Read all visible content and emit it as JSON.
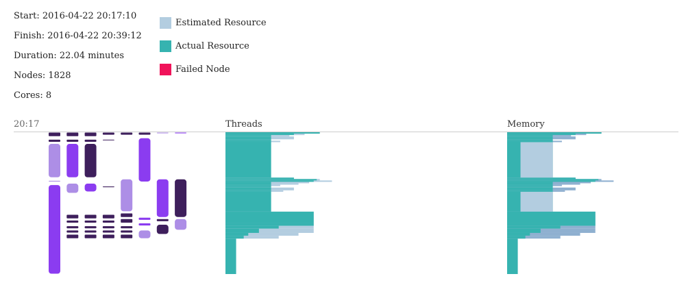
{
  "stats": {
    "start": "Start: 2016-04-22 20:17:10",
    "finish": "Finish: 2016-04-22 20:39:12",
    "duration": "Duration: 22.04 minutes",
    "nodes": "Nodes: 1828",
    "cores": "Cores: 8"
  },
  "legend": [
    {
      "label": "Estimated Resource",
      "color": "#b3cde0"
    },
    {
      "label": "Actual Resource",
      "color": "#36b3b0"
    },
    {
      "label": "Failed Node",
      "color": "#f0135a"
    }
  ],
  "colors": {
    "light_purple": "#ad8ee6",
    "purple": "#8b3cf0",
    "dark_purple": "#3e1f5c",
    "estimated": "#b3cde0",
    "estimated_dark": "#8fb0d0",
    "actual": "#36b3b0",
    "actual_dark": "#1a9990",
    "axis": "#cccccc"
  },
  "time_axis": {
    "start_label": "20:17"
  },
  "chart_data": {
    "type": "gantt",
    "title": "",
    "panels": [
      {
        "title": "Threads"
      },
      {
        "title": "Memory"
      }
    ],
    "timeline": {
      "lanes": 8,
      "tasks": [
        {
          "lane": 0,
          "start": 0.0,
          "end": 0.03,
          "shade": "dark_purple"
        },
        {
          "lane": 0,
          "start": 0.05,
          "end": 0.07,
          "shade": "dark_purple"
        },
        {
          "lane": 0,
          "start": 0.08,
          "end": 0.32,
          "shade": "light_purple"
        },
        {
          "lane": 0,
          "start": 0.34,
          "end": 0.35,
          "shade": "light_purple"
        },
        {
          "lane": 0,
          "start": 0.37,
          "end": 1.0,
          "shade": "purple"
        },
        {
          "lane": 1,
          "start": 0.0,
          "end": 0.03,
          "shade": "dark_purple"
        },
        {
          "lane": 1,
          "start": 0.05,
          "end": 0.07,
          "shade": "dark_purple"
        },
        {
          "lane": 1,
          "start": 0.08,
          "end": 0.32,
          "shade": "purple"
        },
        {
          "lane": 1,
          "start": 0.36,
          "end": 0.43,
          "shade": "light_purple"
        },
        {
          "lane": 1,
          "start": 0.58,
          "end": 0.61,
          "shade": "dark_purple"
        },
        {
          "lane": 1,
          "start": 0.62,
          "end": 0.64,
          "shade": "dark_purple"
        },
        {
          "lane": 1,
          "start": 0.66,
          "end": 0.68,
          "shade": "dark_purple"
        },
        {
          "lane": 1,
          "start": 0.69,
          "end": 0.71,
          "shade": "dark_purple"
        },
        {
          "lane": 1,
          "start": 0.72,
          "end": 0.75,
          "shade": "dark_purple"
        },
        {
          "lane": 2,
          "start": 0.0,
          "end": 0.03,
          "shade": "dark_purple"
        },
        {
          "lane": 2,
          "start": 0.05,
          "end": 0.07,
          "shade": "dark_purple"
        },
        {
          "lane": 2,
          "start": 0.08,
          "end": 0.32,
          "shade": "dark_purple"
        },
        {
          "lane": 2,
          "start": 0.36,
          "end": 0.42,
          "shade": "purple"
        },
        {
          "lane": 2,
          "start": 0.58,
          "end": 0.61,
          "shade": "dark_purple"
        },
        {
          "lane": 2,
          "start": 0.62,
          "end": 0.64,
          "shade": "dark_purple"
        },
        {
          "lane": 2,
          "start": 0.66,
          "end": 0.68,
          "shade": "dark_purple"
        },
        {
          "lane": 2,
          "start": 0.69,
          "end": 0.71,
          "shade": "dark_purple"
        },
        {
          "lane": 2,
          "start": 0.72,
          "end": 0.75,
          "shade": "dark_purple"
        },
        {
          "lane": 3,
          "start": 0.0,
          "end": 0.02,
          "shade": "dark_purple"
        },
        {
          "lane": 3,
          "start": 0.05,
          "end": 0.06,
          "shade": "dark_purple"
        },
        {
          "lane": 3,
          "start": 0.38,
          "end": 0.39,
          "shade": "dark_purple"
        },
        {
          "lane": 3,
          "start": 0.58,
          "end": 0.61,
          "shade": "dark_purple"
        },
        {
          "lane": 3,
          "start": 0.62,
          "end": 0.64,
          "shade": "dark_purple"
        },
        {
          "lane": 3,
          "start": 0.66,
          "end": 0.68,
          "shade": "dark_purple"
        },
        {
          "lane": 3,
          "start": 0.69,
          "end": 0.71,
          "shade": "dark_purple"
        },
        {
          "lane": 3,
          "start": 0.72,
          "end": 0.75,
          "shade": "dark_purple"
        },
        {
          "lane": 4,
          "start": 0.0,
          "end": 0.02,
          "shade": "dark_purple"
        },
        {
          "lane": 4,
          "start": 0.33,
          "end": 0.56,
          "shade": "light_purple"
        },
        {
          "lane": 4,
          "start": 0.57,
          "end": 0.6,
          "shade": "dark_purple"
        },
        {
          "lane": 4,
          "start": 0.61,
          "end": 0.64,
          "shade": "dark_purple"
        },
        {
          "lane": 4,
          "start": 0.66,
          "end": 0.68,
          "shade": "dark_purple"
        },
        {
          "lane": 4,
          "start": 0.69,
          "end": 0.71,
          "shade": "dark_purple"
        },
        {
          "lane": 4,
          "start": 0.72,
          "end": 0.75,
          "shade": "dark_purple"
        },
        {
          "lane": 5,
          "start": 0.0,
          "end": 0.02,
          "shade": "dark_purple"
        },
        {
          "lane": 5,
          "start": 0.04,
          "end": 0.35,
          "shade": "purple"
        },
        {
          "lane": 5,
          "start": 0.6,
          "end": 0.62,
          "shade": "purple"
        },
        {
          "lane": 5,
          "start": 0.64,
          "end": 0.66,
          "shade": "purple"
        },
        {
          "lane": 5,
          "start": 0.69,
          "end": 0.75,
          "shade": "light_purple"
        },
        {
          "lane": 6,
          "start": 0.0,
          "end": 0.01,
          "shade": "light_purple"
        },
        {
          "lane": 6,
          "start": 0.33,
          "end": 0.6,
          "shade": "purple"
        },
        {
          "lane": 6,
          "start": 0.61,
          "end": 0.63,
          "shade": "dark_purple"
        },
        {
          "lane": 6,
          "start": 0.65,
          "end": 0.72,
          "shade": "dark_purple"
        },
        {
          "lane": 7,
          "start": 0.0,
          "end": 0.01,
          "shade": "purple"
        },
        {
          "lane": 7,
          "start": 0.33,
          "end": 0.6,
          "shade": "dark_purple"
        },
        {
          "lane": 7,
          "start": 0.61,
          "end": 0.69,
          "shade": "light_purple"
        }
      ]
    },
    "usage": [
      {
        "t0": 0.0,
        "t1": 0.01,
        "est": 0.62,
        "act": 0.62
      },
      {
        "t0": 0.01,
        "t1": 0.02,
        "est": 0.52,
        "act": 0.45
      },
      {
        "t0": 0.02,
        "t1": 0.03,
        "est": 0.42,
        "act": 0.3
      },
      {
        "t0": 0.03,
        "t1": 0.05,
        "est": 0.45,
        "act": 0.3
      },
      {
        "t0": 0.05,
        "t1": 0.06,
        "est": 0.3,
        "act": 0.3
      },
      {
        "t0": 0.06,
        "t1": 0.07,
        "est": 0.36,
        "act": 0.3
      },
      {
        "t0": 0.07,
        "t1": 0.32,
        "est": 0.3,
        "act": 0.3
      },
      {
        "t0": 0.32,
        "t1": 0.33,
        "est": 0.45,
        "act": 0.45
      },
      {
        "t0": 0.33,
        "t1": 0.34,
        "est": 0.62,
        "act": 0.6
      },
      {
        "t0": 0.34,
        "t1": 0.35,
        "est": 0.7,
        "act": 0.58
      },
      {
        "t0": 0.35,
        "t1": 0.36,
        "est": 0.55,
        "act": 0.3
      },
      {
        "t0": 0.36,
        "t1": 0.37,
        "est": 0.48,
        "act": 0.3
      },
      {
        "t0": 0.37,
        "t1": 0.38,
        "est": 0.36,
        "act": 0.3
      },
      {
        "t0": 0.38,
        "t1": 0.39,
        "est": 0.3,
        "act": 0.3
      },
      {
        "t0": 0.39,
        "t1": 0.41,
        "est": 0.45,
        "act": 0.3
      },
      {
        "t0": 0.41,
        "t1": 0.42,
        "est": 0.38,
        "act": 0.3
      },
      {
        "t0": 0.42,
        "t1": 0.56,
        "est": 0.3,
        "act": 0.3
      },
      {
        "t0": 0.56,
        "t1": 0.57,
        "est": 0.58,
        "act": 0.58
      },
      {
        "t0": 0.57,
        "t1": 0.64,
        "est": 0.58,
        "act": 0.58
      },
      {
        "t0": 0.64,
        "t1": 0.66,
        "est": 0.58,
        "act": 0.58
      },
      {
        "t0": 0.66,
        "t1": 0.68,
        "est": 0.58,
        "act": 0.35
      },
      {
        "t0": 0.68,
        "t1": 0.71,
        "est": 0.58,
        "act": 0.22
      },
      {
        "t0": 0.71,
        "t1": 0.73,
        "est": 0.48,
        "act": 0.15
      },
      {
        "t0": 0.73,
        "t1": 0.75,
        "est": 0.35,
        "act": 0.12
      },
      {
        "t0": 0.75,
        "t1": 1.0,
        "est": 0.07,
        "act": 0.07
      }
    ]
  }
}
